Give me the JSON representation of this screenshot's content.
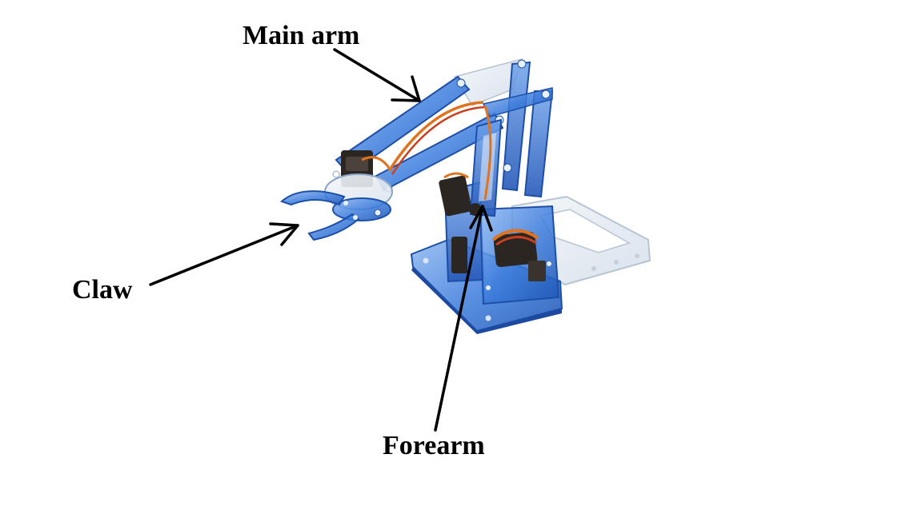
{
  "labels": {
    "main_arm": "Main arm",
    "claw": "Claw",
    "forearm": "Forearm"
  },
  "colors": {
    "acrylic_blue": "#2f6fd8",
    "acrylic_edge": "#1d4fa8",
    "clear_acrylic": "#e8eef4",
    "servo_dark": "#2b2622",
    "wire_orange": "#e0731d",
    "wire_red": "#c8401e",
    "arrow": "#000000"
  }
}
